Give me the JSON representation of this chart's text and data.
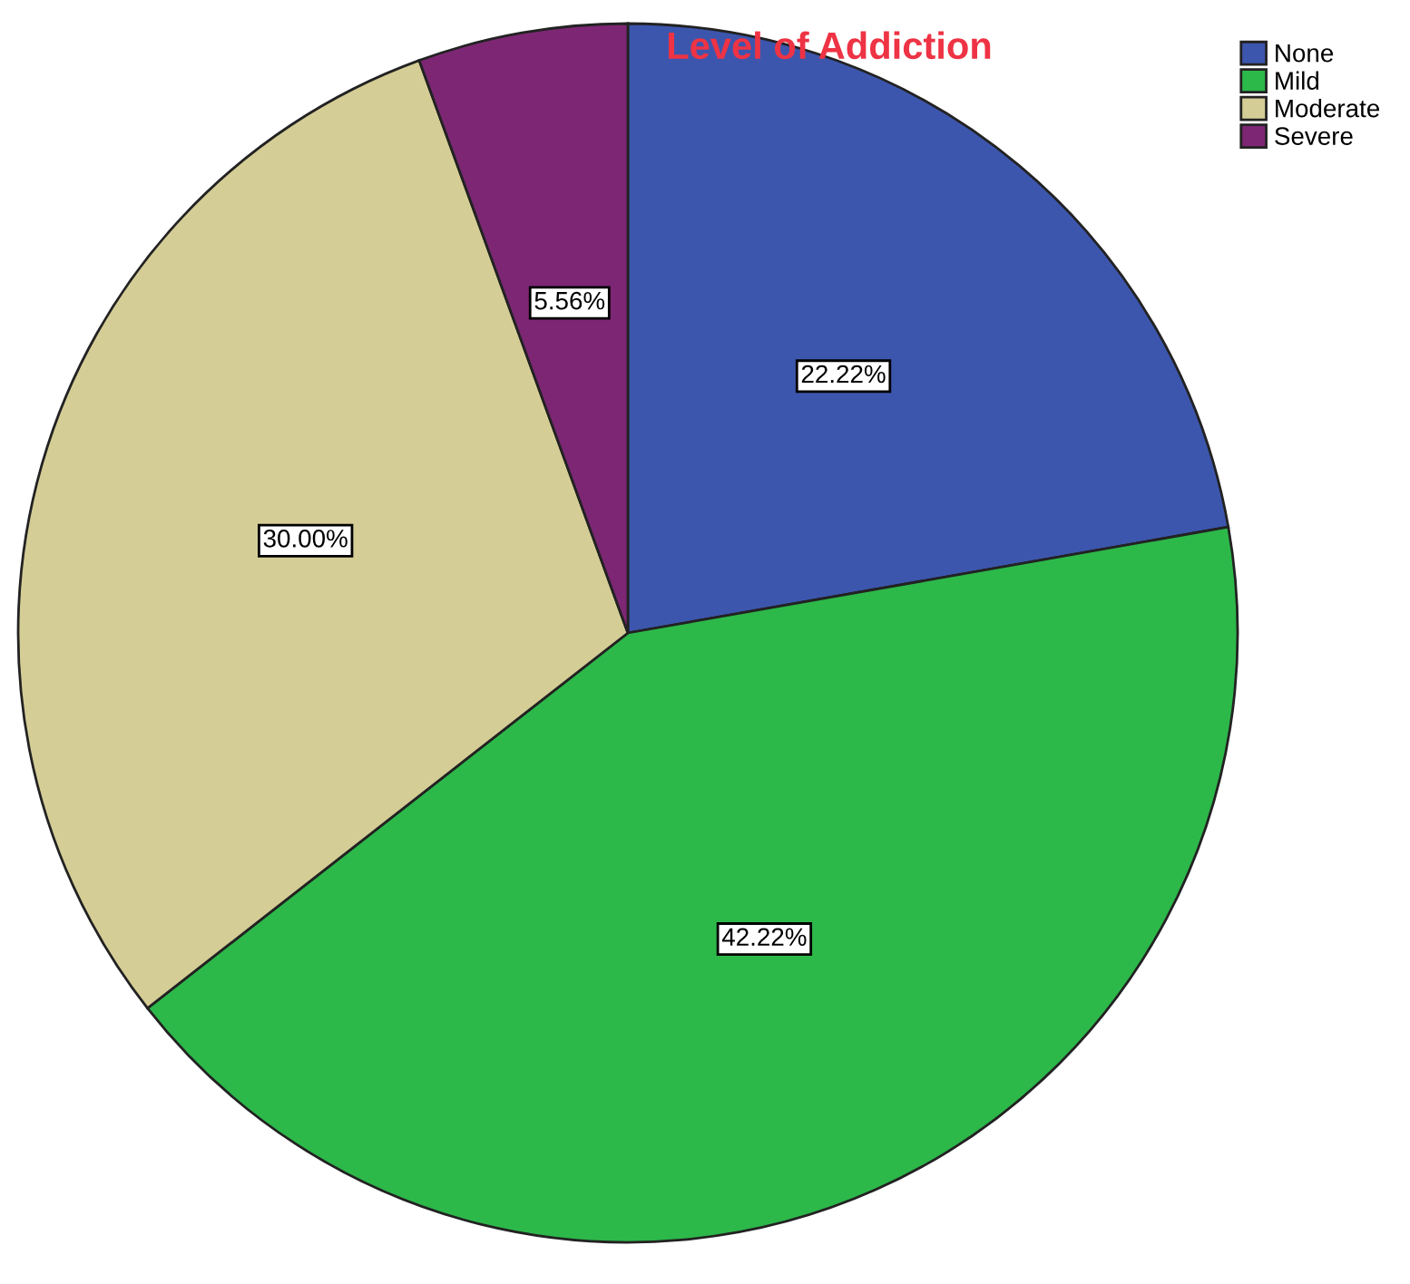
{
  "chart_data": {
    "type": "pie",
    "title": "Level of Addiction",
    "categories": [
      "None",
      "Mild",
      "Moderate",
      "Severe"
    ],
    "values": [
      22.22,
      42.22,
      30.0,
      5.56
    ],
    "value_labels": [
      "22.22%",
      "42.22%",
      "30.00%",
      "5.56%"
    ],
    "colors": [
      "#3d56ad",
      "#2db84a",
      "#d5cd96",
      "#7d2774"
    ],
    "legend": "top right"
  }
}
